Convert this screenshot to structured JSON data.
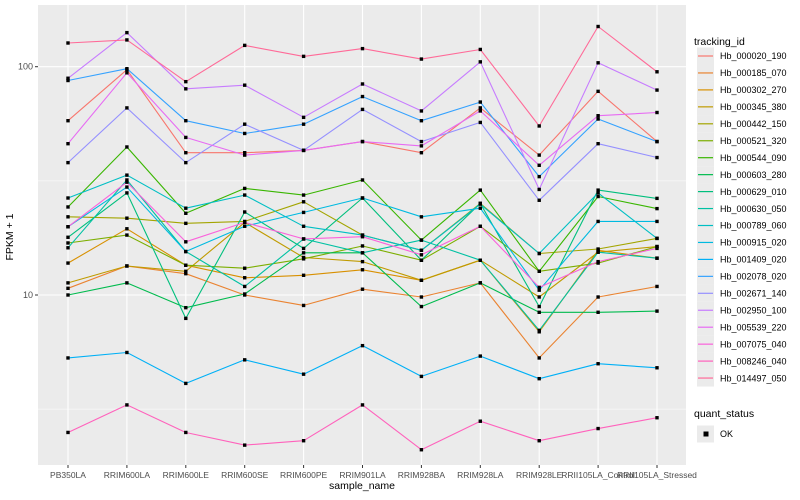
{
  "chart_data": {
    "type": "line",
    "log_y": true,
    "xlabel": "sample_name",
    "ylabel": "FPKM + 1",
    "legend_title": "tracking_id",
    "legend_position": "right",
    "panel_bg": "#EBEBEB",
    "grid_color": "#FFFFFF",
    "axis_text_color": "#4D4D4D",
    "point_color": "#000000",
    "point_shape": "square",
    "y_ticks": [
      10,
      100
    ],
    "y_tick_labels": [
      "10",
      "100"
    ],
    "y_minor_ticks": [
      3.162,
      31.62
    ],
    "ylim": [
      1.8,
      180
    ],
    "categories": [
      "PB350LA",
      "RRIM600LA",
      "RRIM600LE",
      "RRIM600SE",
      "RRIM600PE",
      "RRIM901LA",
      "RRIM928BA",
      "RRIM928LA",
      "RRIM928LE",
      "RRII105LA_Control",
      "RRII105LA_Stressed"
    ],
    "series": [
      {
        "name": "Hb_000020_190",
        "color": "#F8766D",
        "values": [
          58,
          97,
          42,
          42,
          43,
          47,
          42,
          66,
          41,
          78,
          47
        ]
      },
      {
        "name": "Hb_000185_070",
        "color": "#EA8331",
        "values": [
          10.7,
          13.4,
          12.4,
          10,
          9,
          10.6,
          9.8,
          11.3,
          5.3,
          9.8,
          10.9
        ]
      },
      {
        "name": "Hb_000302_270",
        "color": "#D89000",
        "values": [
          13.8,
          19.5,
          13.5,
          11.9,
          12.2,
          12.9,
          11.6,
          14.2,
          6.9,
          15.7,
          14.5
        ]
      },
      {
        "name": "Hb_000345_380",
        "color": "#C09B00",
        "values": [
          11.3,
          13.4,
          12.7,
          20.8,
          14.6,
          14,
          11.6,
          14.2,
          9.8,
          15.4,
          16.3
        ]
      },
      {
        "name": "Hb_000442_150",
        "color": "#A3A500",
        "values": [
          22,
          21.7,
          20.6,
          21,
          25.6,
          18.3,
          15.7,
          25.2,
          15.2,
          15.9,
          17.7
        ]
      },
      {
        "name": "Hb_000521_320",
        "color": "#7CAE00",
        "values": [
          16.9,
          18.3,
          13.5,
          13.1,
          14.4,
          16.4,
          14.2,
          20,
          12.7,
          13.8,
          16.3
        ]
      },
      {
        "name": "Hb_000544_090",
        "color": "#39B600",
        "values": [
          24.3,
          44.5,
          22.8,
          29.3,
          27.4,
          31.9,
          17.4,
          28.8,
          12.7,
          27,
          23.9
        ]
      },
      {
        "name": "Hb_000603_280",
        "color": "#00BB4E",
        "values": [
          10,
          11.3,
          8.8,
          10.1,
          15.3,
          15.3,
          8.9,
          11.3,
          8.4,
          8.4,
          8.5
        ]
      },
      {
        "name": "Hb_000629_010",
        "color": "#00BF7D",
        "values": [
          17.9,
          28,
          7.9,
          23.1,
          16,
          26.6,
          14.2,
          25.2,
          8.9,
          28.8,
          26.5
        ]
      },
      {
        "name": "Hb_000630_050",
        "color": "#00C1A3",
        "values": [
          16.1,
          31.9,
          15.5,
          10.9,
          17.6,
          15.3,
          17.4,
          14.2,
          7,
          15.4,
          14.5
        ]
      },
      {
        "name": "Hb_000789_060",
        "color": "#00BFC4",
        "values": [
          26.6,
          33.5,
          24,
          27.4,
          20,
          18.3,
          15.7,
          25,
          15.2,
          28,
          17.7
        ]
      },
      {
        "name": "Hb_000915_020",
        "color": "#00BAE0",
        "values": [
          19.9,
          29.7,
          15.5,
          20,
          23,
          26.6,
          22,
          24,
          10.5,
          21,
          21
        ]
      },
      {
        "name": "Hb_001409_020",
        "color": "#00B0F6",
        "values": [
          5.3,
          5.6,
          4.1,
          5.2,
          4.5,
          6,
          4.4,
          5.4,
          4.3,
          5,
          4.8
        ]
      },
      {
        "name": "Hb_002078_020",
        "color": "#35A2FF",
        "values": [
          87,
          98,
          58,
          51,
          56,
          74,
          58,
          70,
          33,
          59,
          47
        ]
      },
      {
        "name": "Hb_002671_140",
        "color": "#9590FF",
        "values": [
          38,
          66,
          38,
          56,
          43,
          65,
          47,
          57,
          26,
          46,
          40
        ]
      },
      {
        "name": "Hb_002950_100",
        "color": "#C77CFF",
        "values": [
          89,
          141,
          80,
          83,
          60,
          84,
          64,
          105,
          29,
          104,
          79
        ]
      },
      {
        "name": "Hb_005539_220",
        "color": "#E76BF3",
        "values": [
          46,
          94,
          49,
          41,
          43,
          47,
          45,
          64,
          37,
          61,
          63
        ]
      },
      {
        "name": "Hb_007075_040",
        "color": "#FA62DB",
        "values": [
          19.9,
          31.2,
          17.1,
          20.8,
          17.6,
          18,
          15,
          20,
          10.8,
          14,
          16
        ]
      },
      {
        "name": "Hb_008246_040",
        "color": "#FF62BC",
        "values": [
          2.5,
          3.3,
          2.5,
          2.2,
          2.3,
          3.3,
          2.1,
          2.8,
          2.3,
          2.6,
          2.9
        ]
      },
      {
        "name": "Hb_014497_050",
        "color": "#FF6A98",
        "values": [
          127,
          131,
          86,
          124,
          111,
          120,
          108,
          119,
          55,
          150,
          95
        ]
      }
    ],
    "quant_legend": {
      "title": "quant_status",
      "items": [
        {
          "label": "OK",
          "marker": "black-square"
        }
      ]
    }
  }
}
